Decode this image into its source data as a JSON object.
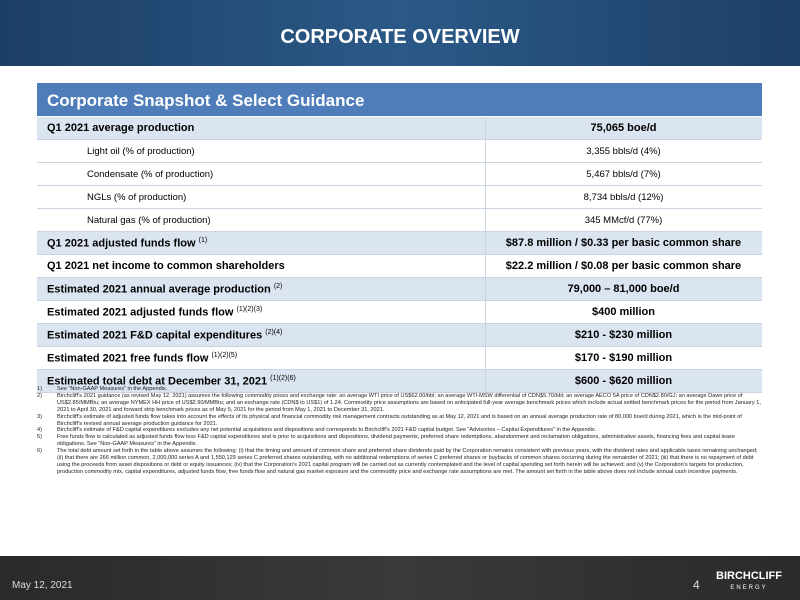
{
  "header": {
    "title": "CORPORATE OVERVIEW"
  },
  "table": {
    "title": "Corporate Snapshot & Select Guidance",
    "rows": [
      {
        "label": "Q1 2021 average production",
        "value": "75,065 boe/d"
      },
      {
        "label": "Light oil (% of production)",
        "value": "3,355 bbls/d (4%)"
      },
      {
        "label": "Condensate (% of production)",
        "value": "5,467 bbls/d (7%)"
      },
      {
        "label": "NGLs (% of production)",
        "value": "8,734 bbls/d (12%)"
      },
      {
        "label": "Natural gas (% of production)",
        "value": "345 MMcf/d (77%)"
      },
      {
        "label": "Q1 2021 adjusted funds flow",
        "note": "(1)",
        "value": "$87.8 million / $0.33 per basic common share"
      },
      {
        "label": "Q1 2021 net income to common shareholders",
        "value": "$22.2 million / $0.08 per basic common share"
      },
      {
        "label": "Estimated 2021 annual average production",
        "note": "(2)",
        "value": "79,000 – 81,000 boe/d"
      },
      {
        "label": "Estimated 2021 adjusted funds flow",
        "note": "(1)(2)(3)",
        "value": "$400 million"
      },
      {
        "label": "Estimated 2021 F&D capital expenditures",
        "note": "(2)(4)",
        "value": "$210 - $230 million"
      },
      {
        "label": "Estimated 2021 free funds flow",
        "note": "(1)(2)(5)",
        "value": "$170 - $190 million"
      },
      {
        "label": "Estimated total debt at December 31, 2021",
        "note": "(1)(2)(6)",
        "value": "$600 - $620 million"
      }
    ]
  },
  "footnotes": [
    {
      "number": "1)",
      "text": "See “Non-GAAP Measures” in the Appendix."
    },
    {
      "number": "2)",
      "text": "Birchcliff’s 2021 guidance (as revised May 12, 2021) assumes the following commodity prices and exchange rate: an average WTI price of US$62.00/bbl; an average WTI-MSW differential of CDN$5.70/bbl; an average AECO 5A price of CDN$2.80/GJ; an average Dawn price of US$2.85/MMBtu; an average NYMEX HH price of US$2.90/MMBtu; and an exchange rate (CDN$ to US$1) of 1.24. Commodity price assumptions are based on anticipated full-year average benchmark prices which include actual settled benchmark prices for the period from January 1, 2021 to April 30, 2021 and forward strip benchmark prices as of May 5, 2021 for the period from May 1, 2021 to December 31, 2021."
    },
    {
      "number": "3)",
      "text": "Birchcliff’s estimate of adjusted funds flow takes into account the effects of its physical and financial commodity risk management contracts outstanding as at May 12, 2021 and is based on an annual average production rate of 80,000 boe/d during 2021, which is the mid-point of Birchcliff’s revised annual average production guidance for 2021."
    },
    {
      "number": "4)",
      "text": "Birchcliff’s estimate of F&D capital expenditures excludes any net potential acquisitions and dispositions and corresponds to Birchcliff’s 2021 F&D capital budget. See “Advisories – Capital Expenditures” in the Appendix."
    },
    {
      "number": "5)",
      "text": "Free funds flow is calculated as adjusted funds flow less F&D capital expenditures and is prior to acquisitions and dispositions, dividend payments, preferred share redemptions, abandonment and reclamation obligations, administrative assets, financing fees and capital lease obligations. See “Non-GAAP Measures” in the Appendix."
    },
    {
      "number": "6)",
      "text": "The total debt amount set forth in the table above assumes the following: (i) that the timing and amount of common share and preferred share dividends paid by the Corporation remains consistent with previous years, with the dividend rates and applicable taxes remaining unchanged; (ii) that there are 266 million common, 2,000,000 series A and 1,550,129 series C preferred shares outstanding, with no additional redemptions of series C preferred shares or buybacks of common shares occurring during the remainder of 2021; (iii) that there is no repayment of debt using the proceeds from asset dispositions or debt or equity issuances; (iv) that the Corporation’s 2021 capital program will be carried out as currently contemplated and the level of capital spending set forth herein will be achieved; and (v) the Corporation’s targets for production, production commodity mix, capital expenditures, adjusted funds flow, free funds flow and natural gas market exposure and the commodity price and exchange rate assumptions are met. The amount set forth in the table above does not include annual cash incentive payments."
    }
  ],
  "footer": {
    "date": "May 12, 2021",
    "page": "4",
    "logo": "BIRCHCLIFF",
    "logo_sub": "ENERGY"
  }
}
